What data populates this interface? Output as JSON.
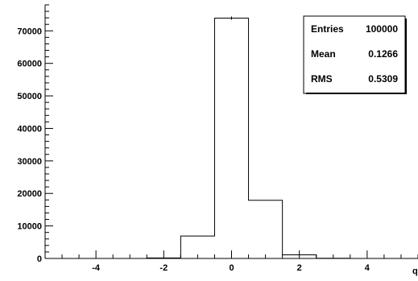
{
  "chart_data": {
    "type": "bar",
    "bin_edges": [
      -5.5,
      -4.5,
      -3.5,
      -2.5,
      -1.5,
      -0.5,
      0.5,
      1.5,
      2.5,
      3.5,
      4.5,
      5.5
    ],
    "values": [
      0,
      0,
      0,
      150,
      6900,
      73900,
      17900,
      1100,
      50,
      0,
      0
    ],
    "xlim": [
      -5.5,
      5.5
    ],
    "ylim": [
      0,
      78000
    ],
    "x_major_ticks": [
      -4,
      -2,
      0,
      2,
      4
    ],
    "x_tick_labels": [
      "-4",
      "-2",
      "0",
      "2",
      "4"
    ],
    "y_major_ticks": [
      0,
      10000,
      20000,
      30000,
      40000,
      50000,
      60000,
      70000
    ],
    "y_tick_labels": [
      "0",
      "10000",
      "20000",
      "30000",
      "40000",
      "50000",
      "60000",
      "70000"
    ],
    "xlabel": "q",
    "ylabel": "",
    "title": "",
    "grid": false,
    "legend": "none",
    "colors": {
      "line": "#000000",
      "background": "#ffffff"
    }
  },
  "stats_box": {
    "entries_label": "Entries",
    "entries_value": "100000",
    "mean_label": "Mean",
    "mean_value": "0.1266",
    "rms_label": "RMS",
    "rms_value": "0.5309"
  }
}
